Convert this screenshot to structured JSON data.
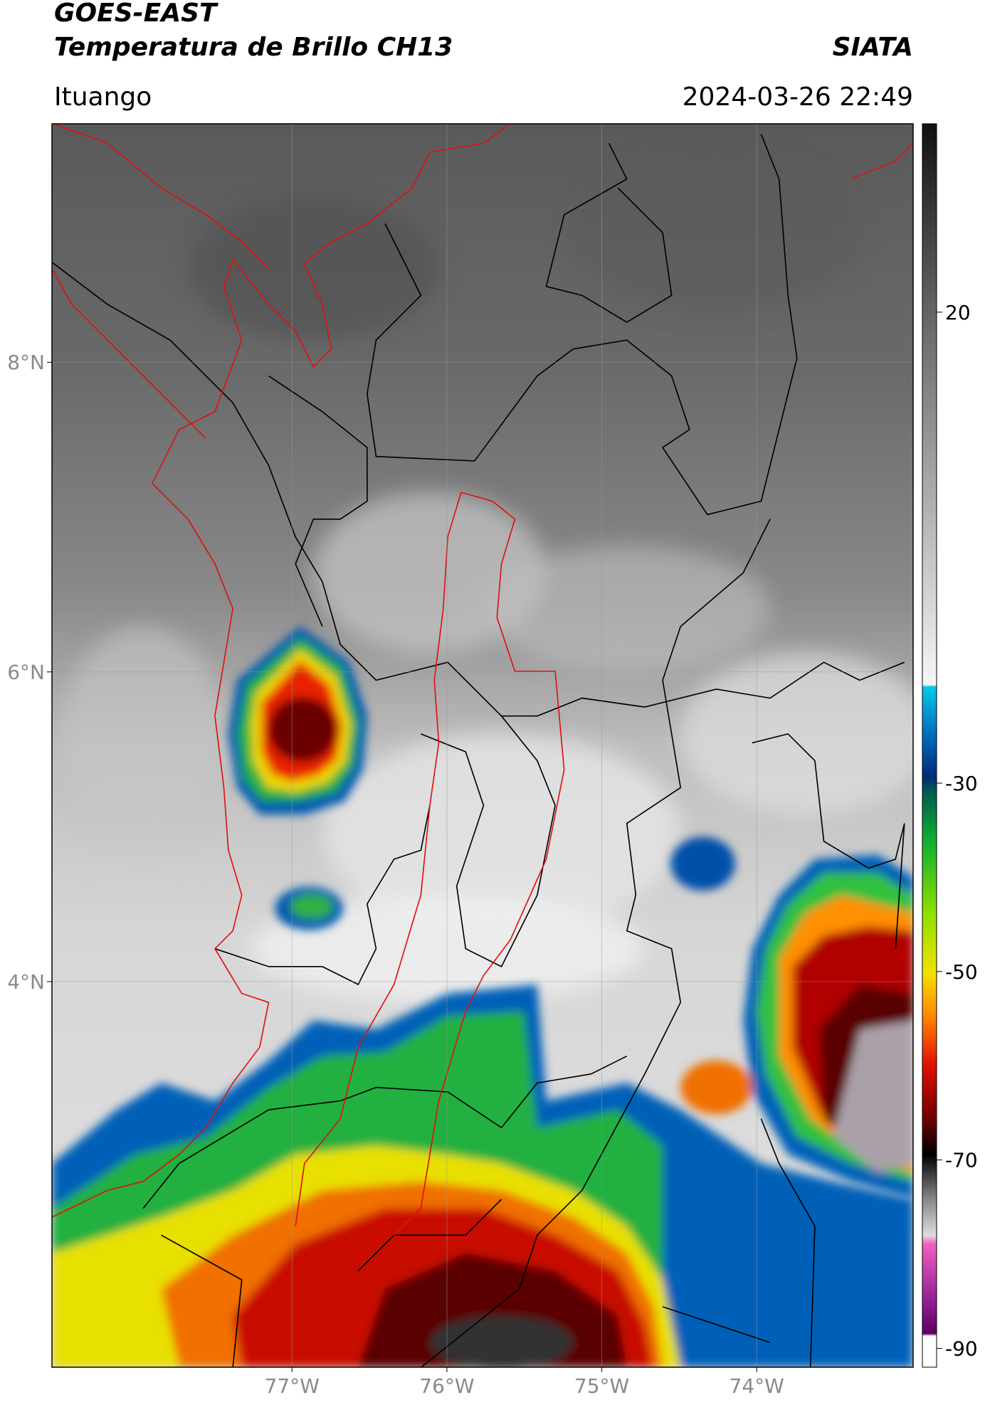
{
  "header": {
    "title": "GOES-EAST",
    "subtitle": "Temperatura de Brillo CH13",
    "brand": "SIATA",
    "location": "Ituango",
    "timestamp": "2024-03-26 22:49"
  },
  "map": {
    "lonlim": [
      -78.55,
      -72.99
    ],
    "latlim": [
      1.51,
      9.54
    ],
    "xticks": [
      {
        "value": -77,
        "label": "77°W"
      },
      {
        "value": -76,
        "label": "76°W"
      },
      {
        "value": -75,
        "label": "75°W"
      },
      {
        "value": -74,
        "label": "74°W"
      }
    ],
    "yticks": [
      {
        "value": 8,
        "label": "8°N"
      },
      {
        "value": 6,
        "label": "6°N"
      },
      {
        "value": 4,
        "label": "4°N"
      }
    ],
    "grid": true
  },
  "colorbar": {
    "range": [
      40,
      -92
    ],
    "ticks": [
      20,
      -30,
      -50,
      -70,
      -90
    ]
  }
}
